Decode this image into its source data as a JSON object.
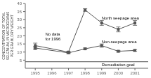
{
  "chart_data": {
    "type": "line",
    "ylabel": "CONCENTRATION OF TOTAL\nSELENIUM, IN MICROGRAMS\nPER GRAM, DRY WEIGHT",
    "x": [
      1995,
      1997,
      1998,
      1999,
      2000,
      2001
    ],
    "xlim": [
      1994.4,
      2001.8
    ],
    "xticks": [
      1995,
      1996,
      1997,
      1998,
      1999,
      2000,
      2001
    ],
    "ylim": [
      0,
      40
    ],
    "yticks": [
      5,
      10,
      15,
      20,
      25,
      30,
      35,
      40
    ],
    "grid": false,
    "legend": false,
    "series": [
      {
        "color": "#555555",
        "marker": "square",
        "values": [
          14.0,
          10.0,
          36.0,
          28.0,
          24.0,
          28.0
        ],
        "yerr_low": [
          1.5,
          0.5,
          0.8,
          1.5,
          1.5,
          1.5
        ],
        "yerr_high": [
          1.5,
          0.5,
          0.8,
          1.5,
          1.5,
          1.5
        ]
      },
      {
        "color": "#555555",
        "marker": "square",
        "values": [
          12.5,
          9.5,
          12.0,
          14.0,
          10.5,
          11.0
        ],
        "yerr_low": [
          1.0,
          0.5,
          0.5,
          1.0,
          0.5,
          0.5
        ],
        "yerr_high": [
          1.0,
          0.5,
          0.5,
          1.0,
          0.5,
          0.5
        ]
      }
    ],
    "reference_line": {
      "value": 4,
      "color": "#444444"
    },
    "annotations": [
      {
        "text": "North seepage area",
        "x": 1999.0,
        "y": 31.0
      },
      {
        "text": "Non-seepage area",
        "x": 1999.0,
        "y": 16.5
      },
      {
        "text": "Remediation goal",
        "x": 1999.0,
        "y": 2.2
      },
      {
        "text": "No data\nfor 1996",
        "x": 1995.6,
        "y": 19.5
      }
    ]
  }
}
